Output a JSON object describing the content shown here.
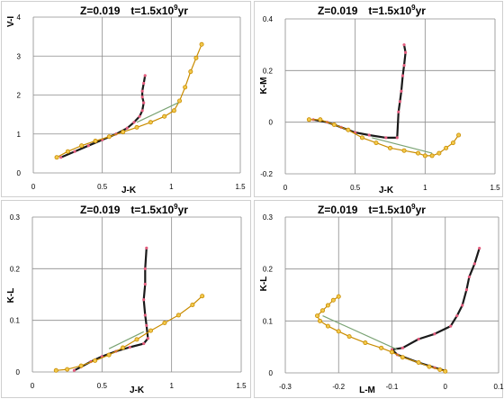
{
  "colors": {
    "grid": "#8c8c8c",
    "giant_branch": "#1a1a1a",
    "giant_points": "#e35d7e",
    "agb_line": "#c98c00",
    "agb_points": "#f2c94c",
    "link": "#7aa374"
  },
  "chart_data": [
    {
      "type": "scatter",
      "title_z": "Z=0.019",
      "title_t": "t=1.5x10",
      "title_exp": "9",
      "title_unit": "yr",
      "xlabel": "J-K",
      "ylabel": "V-I",
      "xlim": [
        0,
        1.5
      ],
      "ylim": [
        0,
        4
      ],
      "xticks": [
        0,
        0.5,
        1,
        1.5
      ],
      "yticks": [
        0,
        1,
        2,
        3,
        4
      ],
      "xtick_labels": [
        "0",
        "0.5",
        "1",
        "1.5"
      ],
      "ytick_labels": [
        "0",
        "1",
        "2",
        "3",
        "4"
      ],
      "grid": true,
      "series": [
        {
          "role": "giant",
          "x": [
            0.81,
            0.8,
            0.79,
            0.79,
            0.8,
            0.79,
            0.77,
            0.73,
            0.68,
            0.6,
            0.5,
            0.4,
            0.3,
            0.2
          ],
          "y": [
            2.5,
            2.3,
            2.1,
            1.95,
            1.8,
            1.6,
            1.45,
            1.3,
            1.15,
            1.0,
            0.85,
            0.7,
            0.55,
            0.4
          ]
        },
        {
          "role": "agb",
          "x": [
            0.17,
            0.25,
            0.35,
            0.45,
            0.55,
            0.65,
            0.75,
            0.85,
            0.95,
            1.02,
            1.06,
            1.1,
            1.14,
            1.18,
            1.22
          ],
          "y": [
            0.4,
            0.55,
            0.7,
            0.82,
            0.93,
            1.05,
            1.17,
            1.3,
            1.45,
            1.6,
            1.85,
            2.2,
            2.6,
            2.95,
            3.3
          ]
        },
        {
          "role": "link",
          "x": [
            0.75,
            1.05
          ],
          "y": [
            1.3,
            1.8
          ]
        }
      ]
    },
    {
      "type": "scatter",
      "title_z": "Z=0.019",
      "title_t": "t=1.5x10",
      "title_exp": "9",
      "title_unit": "yr",
      "xlabel": "J-K",
      "ylabel": "K-M",
      "xlim": [
        0,
        1.5
      ],
      "ylim": [
        -0.2,
        0.4
      ],
      "xticks": [
        0,
        0.5,
        1,
        1.5
      ],
      "yticks": [
        -0.2,
        0,
        0.2,
        0.4
      ],
      "xtick_labels": [
        "0",
        "0.5",
        "1",
        "1.5"
      ],
      "ytick_labels": [
        "-0.2",
        "0",
        "0.2",
        "0.4"
      ],
      "grid": true,
      "series": [
        {
          "role": "giant",
          "x": [
            0.85,
            0.86,
            0.85,
            0.84,
            0.83,
            0.82,
            0.81,
            0.8,
            0.72,
            0.6,
            0.5,
            0.4,
            0.3,
            0.2
          ],
          "y": [
            0.3,
            0.27,
            0.22,
            0.18,
            0.12,
            0.08,
            0.04,
            -0.06,
            -0.06,
            -0.05,
            -0.04,
            -0.02,
            0.0,
            0.01
          ]
        },
        {
          "role": "agb",
          "x": [
            0.17,
            0.25,
            0.35,
            0.45,
            0.55,
            0.65,
            0.75,
            0.85,
            0.95,
            1.0,
            1.05,
            1.1,
            1.15,
            1.2,
            1.24
          ],
          "y": [
            0.01,
            0.01,
            -0.01,
            -0.03,
            -0.06,
            -0.08,
            -0.1,
            -0.11,
            -0.12,
            -0.13,
            -0.13,
            -0.12,
            -0.1,
            -0.08,
            -0.05
          ]
        },
        {
          "role": "link",
          "x": [
            0.62,
            1.05
          ],
          "y": [
            -0.06,
            -0.12
          ]
        }
      ]
    },
    {
      "type": "scatter",
      "title_z": "Z=0.019",
      "title_t": "t=1.5x10",
      "title_exp": "9",
      "title_unit": "yr",
      "xlabel": "J-K",
      "ylabel": "K-L",
      "xlim": [
        0,
        1.5
      ],
      "ylim": [
        0,
        0.3
      ],
      "xticks": [
        0,
        0.5,
        1,
        1.5
      ],
      "yticks": [
        0,
        0.1,
        0.2,
        0.3
      ],
      "xtick_labels": [
        "0",
        "0.5",
        "1",
        "1.5"
      ],
      "ytick_labels": [
        "0",
        "0.1",
        "0.2",
        "0.3"
      ],
      "grid": true,
      "series": [
        {
          "role": "giant",
          "x": [
            0.82,
            0.81,
            0.81,
            0.8,
            0.81,
            0.82,
            0.83,
            0.8,
            0.7,
            0.6,
            0.5,
            0.42,
            0.35,
            0.3
          ],
          "y": [
            0.24,
            0.2,
            0.17,
            0.14,
            0.11,
            0.09,
            0.065,
            0.055,
            0.048,
            0.04,
            0.03,
            0.02,
            0.01,
            0.003
          ]
        },
        {
          "role": "agb",
          "x": [
            0.17,
            0.25,
            0.35,
            0.45,
            0.55,
            0.65,
            0.75,
            0.85,
            0.95,
            1.05,
            1.15,
            1.22
          ],
          "y": [
            0.003,
            0.005,
            0.012,
            0.022,
            0.033,
            0.047,
            0.063,
            0.08,
            0.095,
            0.11,
            0.13,
            0.147
          ]
        },
        {
          "role": "link",
          "x": [
            0.55,
            0.8
          ],
          "y": [
            0.045,
            0.078
          ]
        }
      ]
    },
    {
      "type": "scatter",
      "title_z": "Z=0.019",
      "title_t": "t=1.5x10",
      "title_exp": "9",
      "title_unit": "yr",
      "xlabel": "L-M",
      "ylabel": "K-L",
      "xlim": [
        -0.3,
        0.1
      ],
      "ylim": [
        0,
        0.3
      ],
      "xticks": [
        -0.3,
        -0.2,
        -0.1,
        0,
        0.1
      ],
      "yticks": [
        0,
        0.1,
        0.2,
        0.3
      ],
      "xtick_labels": [
        "-0.3",
        "-0.2",
        "-0.1",
        "0",
        "0.1"
      ],
      "ytick_labels": [
        "0",
        "0.1",
        "0.2",
        "0.3"
      ],
      "grid": true,
      "series": [
        {
          "role": "giant",
          "x": [
            0.064,
            0.055,
            0.045,
            0.04,
            0.032,
            0.022,
            0.01,
            -0.02,
            -0.05,
            -0.08,
            -0.1,
            -0.09,
            -0.05,
            -0.02,
            0.0
          ],
          "y": [
            0.24,
            0.21,
            0.185,
            0.16,
            0.13,
            0.11,
            0.09,
            0.075,
            0.065,
            0.048,
            0.045,
            0.035,
            0.02,
            0.01,
            0.004
          ]
        },
        {
          "role": "agb",
          "x": [
            -0.2,
            -0.21,
            -0.22,
            -0.23,
            -0.24,
            -0.235,
            -0.22,
            -0.2,
            -0.18,
            -0.15,
            -0.12,
            -0.1,
            -0.08,
            -0.05,
            -0.03,
            -0.01,
            0.0
          ],
          "y": [
            0.147,
            0.14,
            0.13,
            0.12,
            0.11,
            0.1,
            0.09,
            0.08,
            0.07,
            0.058,
            0.048,
            0.04,
            0.03,
            0.02,
            0.012,
            0.006,
            0.003
          ]
        },
        {
          "role": "link",
          "x": [
            -0.23,
            -0.09
          ],
          "y": [
            0.11,
            0.045
          ]
        }
      ]
    }
  ]
}
